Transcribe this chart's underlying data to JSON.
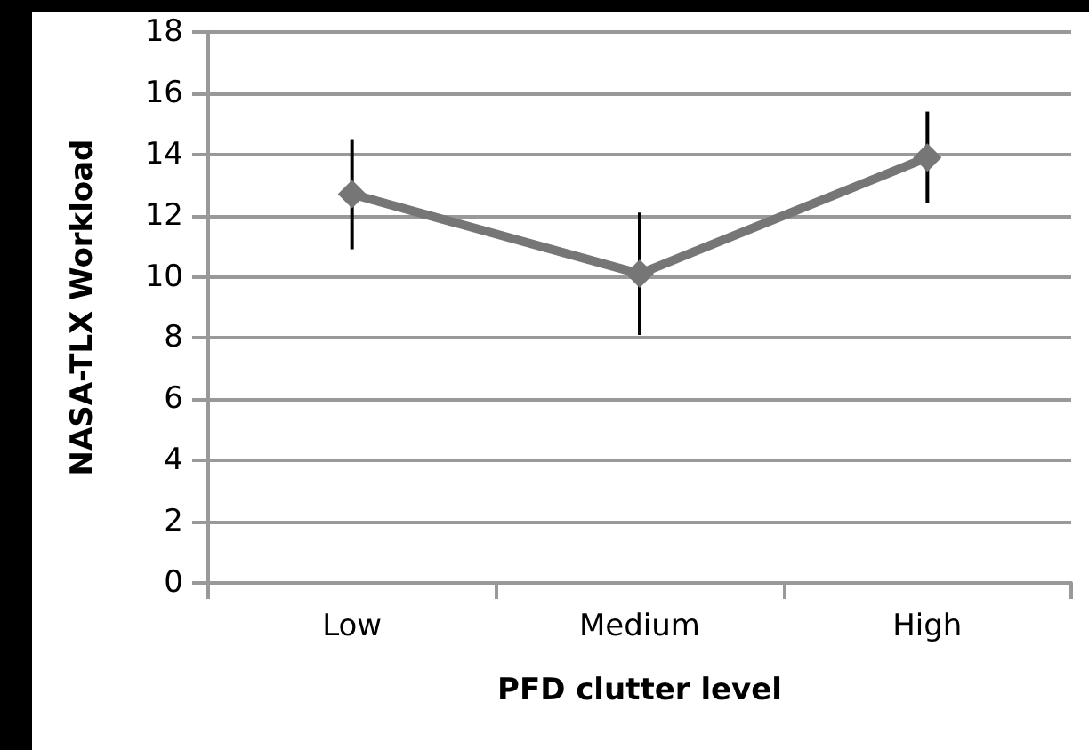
{
  "chart_data": {
    "type": "line",
    "xlabel": "PFD clutter level",
    "ylabel": "NASA-TLX Workload",
    "categories": [
      "Low",
      "Medium",
      "High"
    ],
    "series": [
      {
        "color": "#767676",
        "values": [
          12.7,
          10.1,
          13.9
        ],
        "errors": [
          1.8,
          2.0,
          1.5
        ]
      }
    ],
    "ylim": [
      0,
      18
    ],
    "yticks": [
      0,
      2,
      4,
      6,
      8,
      10,
      12,
      14,
      16,
      18
    ],
    "grid": "y",
    "marker": "diamond",
    "line_style": "solid"
  }
}
